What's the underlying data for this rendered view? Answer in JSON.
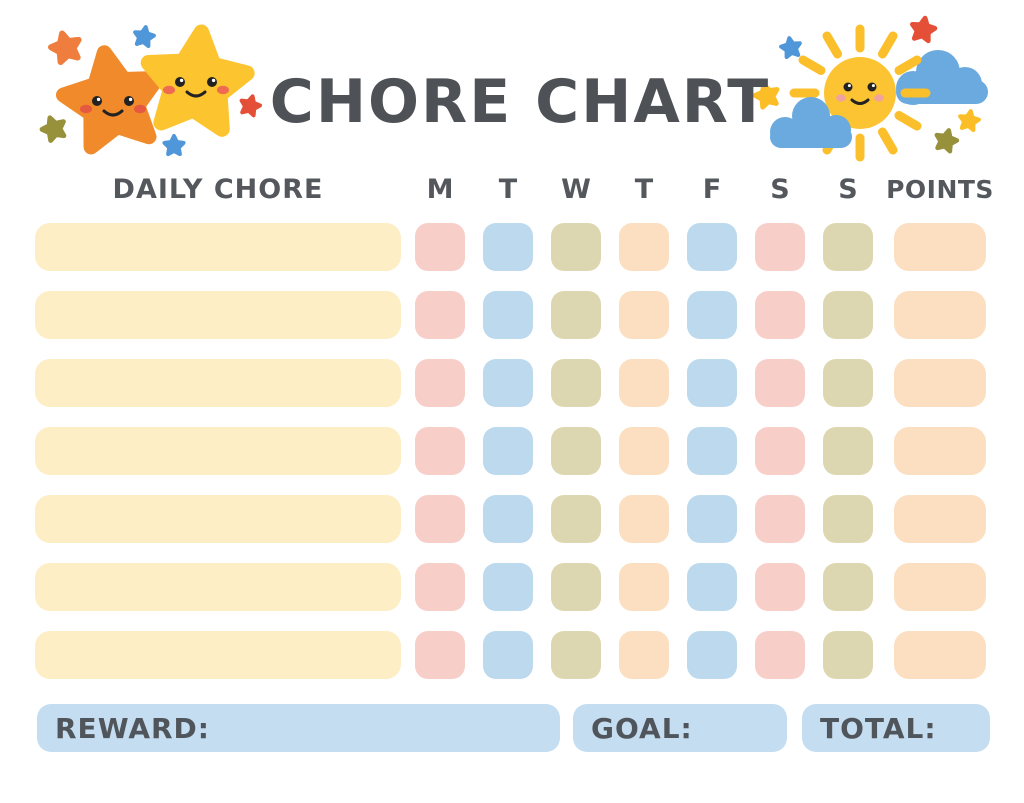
{
  "title": "CHORE CHART",
  "table": {
    "chore_header": "DAILY CHORE",
    "day_headers": [
      "M",
      "T",
      "W",
      "T",
      "F",
      "S",
      "S"
    ],
    "points_header": "POINTS",
    "rows": [
      {
        "chore": "",
        "days": [
          "pink",
          "blue",
          "olive",
          "peach",
          "blue",
          "pink",
          "olive"
        ],
        "points_color": "peach",
        "points": ""
      },
      {
        "chore": "",
        "days": [
          "pink",
          "blue",
          "olive",
          "peach",
          "blue",
          "pink",
          "olive"
        ],
        "points_color": "peach",
        "points": ""
      },
      {
        "chore": "",
        "days": [
          "pink",
          "blue",
          "olive",
          "peach",
          "blue",
          "pink",
          "olive"
        ],
        "points_color": "peach",
        "points": ""
      },
      {
        "chore": "",
        "days": [
          "pink",
          "blue",
          "olive",
          "peach",
          "blue",
          "pink",
          "olive"
        ],
        "points_color": "peach",
        "points": ""
      },
      {
        "chore": "",
        "days": [
          "pink",
          "blue",
          "olive",
          "peach",
          "blue",
          "pink",
          "olive"
        ],
        "points_color": "peach",
        "points": ""
      },
      {
        "chore": "",
        "days": [
          "pink",
          "blue",
          "olive",
          "peach",
          "blue",
          "pink",
          "olive"
        ],
        "points_color": "peach",
        "points": ""
      },
      {
        "chore": "",
        "days": [
          "pink",
          "blue",
          "olive",
          "peach",
          "blue",
          "pink",
          "olive"
        ],
        "points_color": "peach",
        "points": ""
      }
    ]
  },
  "footer": {
    "reward_label": "REWARD:",
    "goal_label": "GOAL:",
    "total_label": "TOTAL:"
  },
  "palette": {
    "pink": "#f8cfc8",
    "blue": "#bdd9ee",
    "olive": "#ddd7b1",
    "peach": "#fbdfc0",
    "cream": "#fdeec6",
    "footer_blue": "#c4ddf0",
    "text": "#54585d",
    "title_text": "#4e5256"
  },
  "decorations": {
    "left_icons": [
      "orange-star-face-icon",
      "yellow-star-face-icon",
      "small-scatter-stars"
    ],
    "right_icons": [
      "sun-face-icon",
      "cloud-icon",
      "small-scatter-stars"
    ]
  }
}
